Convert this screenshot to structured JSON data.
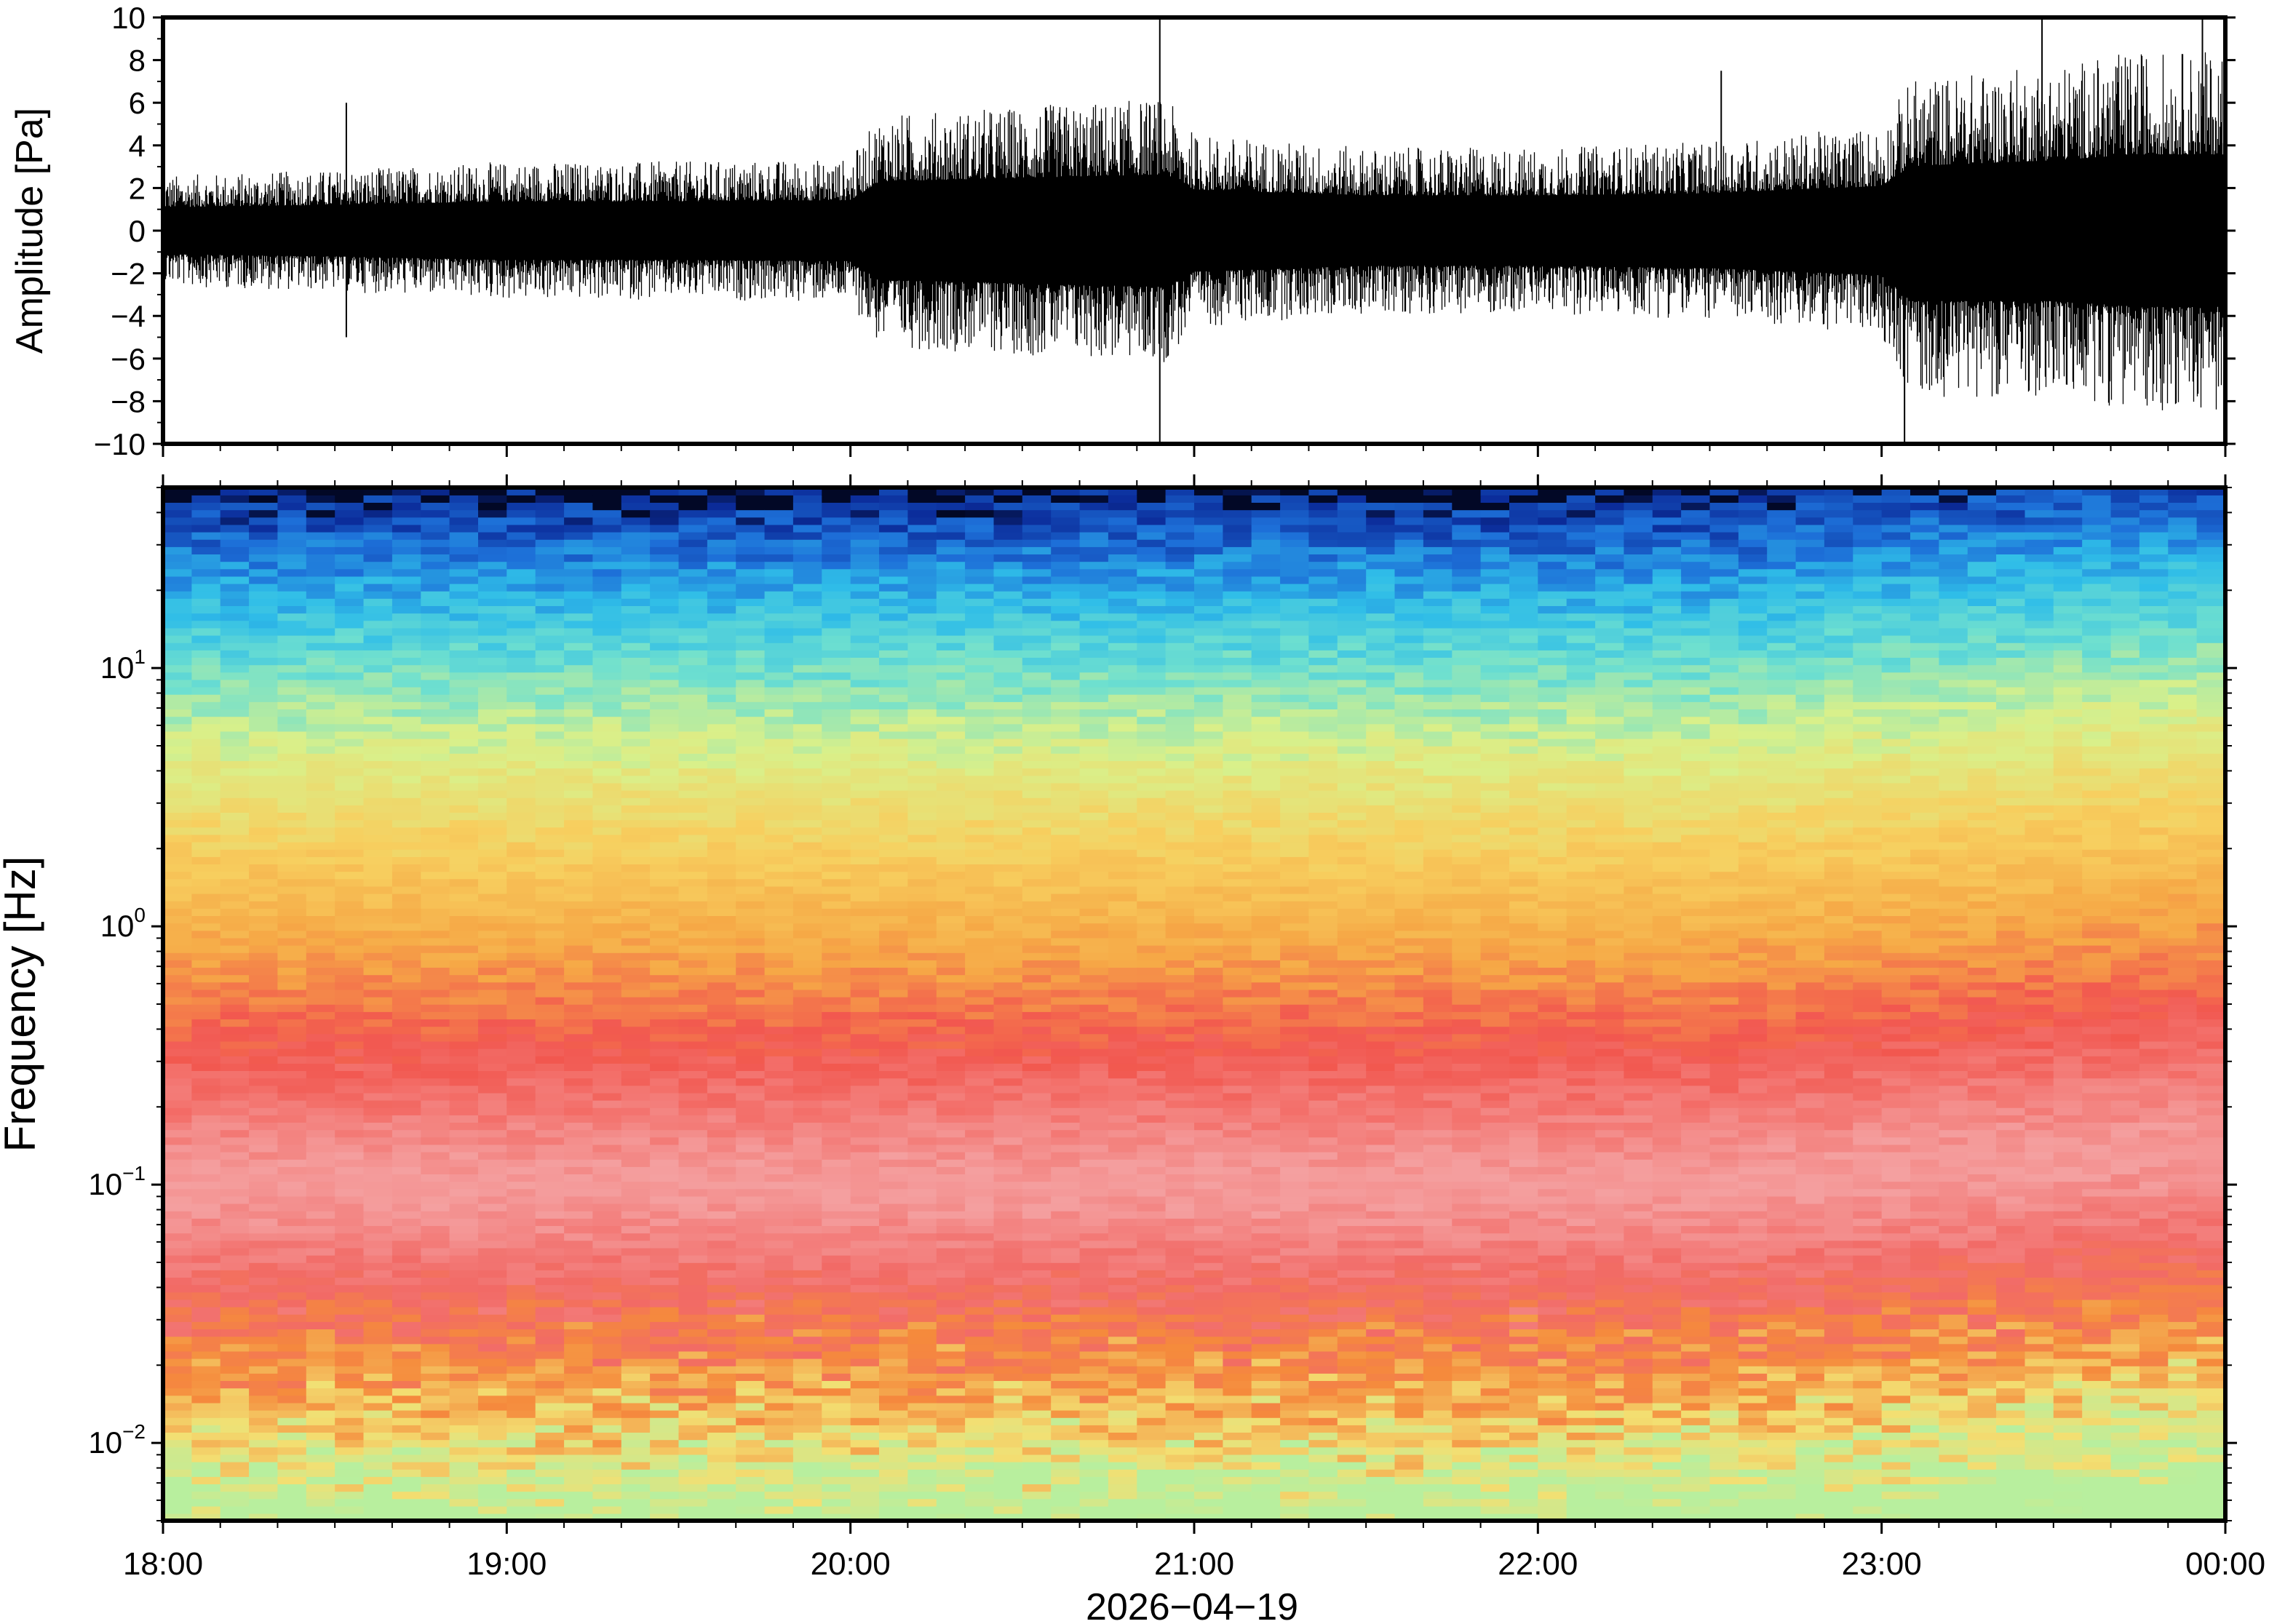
{
  "chart_data": [
    {
      "type": "line",
      "title": "",
      "ylabel": "Amplitude [Pa]",
      "xlabel": "",
      "ylim": [
        -10,
        10
      ],
      "xlim": [
        "18:00",
        "00:00"
      ],
      "y_ticks": [
        10,
        8,
        6,
        4,
        2,
        0,
        -2,
        -4,
        -6,
        -8,
        -10
      ],
      "y_tick_labels": [
        "10",
        "8",
        "6",
        "4",
        "2",
        "0",
        "−2",
        "−4",
        "−6",
        "−8",
        "−10"
      ],
      "series": [
        {
          "color": "#000000",
          "envelope": {
            "time": [
              "18:00",
              "18:30",
              "19:00",
              "19:30",
              "20:00",
              "20:05",
              "20:30",
              "20:55",
              "21:00",
              "21:30",
              "22:00",
              "22:30",
              "23:00",
              "23:05",
              "23:30",
              "23:45",
              "00:00"
            ],
            "upper": [
              2.0,
              2.2,
              2.5,
              2.5,
              2.6,
              4.2,
              4.5,
              4.8,
              3.5,
              3.0,
              3.0,
              3.2,
              3.8,
              5.5,
              6.0,
              6.5,
              6.5
            ],
            "lower": [
              -2.0,
              -2.2,
              -2.5,
              -2.5,
              -2.6,
              -4.2,
              -4.5,
              -4.8,
              -3.5,
              -3.0,
              -3.0,
              -3.2,
              -3.8,
              -6.0,
              -6.0,
              -6.5,
              -6.5
            ]
          },
          "spikes": [
            {
              "time": "18:32",
              "value": 6.0
            },
            {
              "time": "18:32",
              "value": -5.0
            },
            {
              "time": "20:54",
              "value": 10.0
            },
            {
              "time": "20:54",
              "value": -10.0
            },
            {
              "time": "22:32",
              "value": 7.5
            },
            {
              "time": "23:04",
              "value": -10.0
            },
            {
              "time": "23:28",
              "value": 10.0
            },
            {
              "time": "23:56",
              "value": 10.0
            }
          ]
        }
      ]
    },
    {
      "type": "heatmap",
      "title": "",
      "ylabel": "Frequency [Hz]",
      "xlabel": "2026−04−19",
      "yscale": "log",
      "ylim": [
        0.005,
        50
      ],
      "xlim": [
        "18:00",
        "00:00"
      ],
      "y_tick_labels": [
        {
          "base": "10",
          "exp": "1",
          "value": 10
        },
        {
          "base": "10",
          "exp": "0",
          "value": 1
        },
        {
          "base": "10",
          "exp": "−1",
          "value": 0.1
        },
        {
          "base": "10",
          "exp": "−2",
          "value": 0.01
        }
      ],
      "x_tick_labels": [
        "18:00",
        "19:00",
        "20:00",
        "21:00",
        "22:00",
        "23:00",
        "00:00"
      ],
      "colormap": [
        "#ffffff",
        "#f9c4c4",
        "#f26a66",
        "#f3483f",
        "#f58a3c",
        "#f7c155",
        "#f0ea7d",
        "#b6f0a0",
        "#5fe6c8",
        "#2fbde8",
        "#1d6fd8",
        "#0b2c9a",
        "#040b3a"
      ],
      "color_by_frequency": [
        {
          "freq": 50,
          "color": "#020826"
        },
        {
          "freq": 45,
          "color": "#0b2c9a"
        },
        {
          "freq": 30,
          "color": "#1d6fd8"
        },
        {
          "freq": 18,
          "color": "#2fbde8"
        },
        {
          "freq": 10,
          "color": "#6fe0cf"
        },
        {
          "freq": 5,
          "color": "#d9f08a"
        },
        {
          "freq": 2,
          "color": "#f7cf5f"
        },
        {
          "freq": 0.8,
          "color": "#f6a846"
        },
        {
          "freq": 0.35,
          "color": "#f2574f"
        },
        {
          "freq": 0.1,
          "color": "#f4a0a0"
        },
        {
          "freq": 0.04,
          "color": "#f26a66"
        },
        {
          "freq": 0.02,
          "color": "#f58a3c"
        },
        {
          "freq": 0.01,
          "color": "#f3df72"
        },
        {
          "freq": 0.006,
          "color": "#b8ef9e"
        }
      ]
    }
  ]
}
